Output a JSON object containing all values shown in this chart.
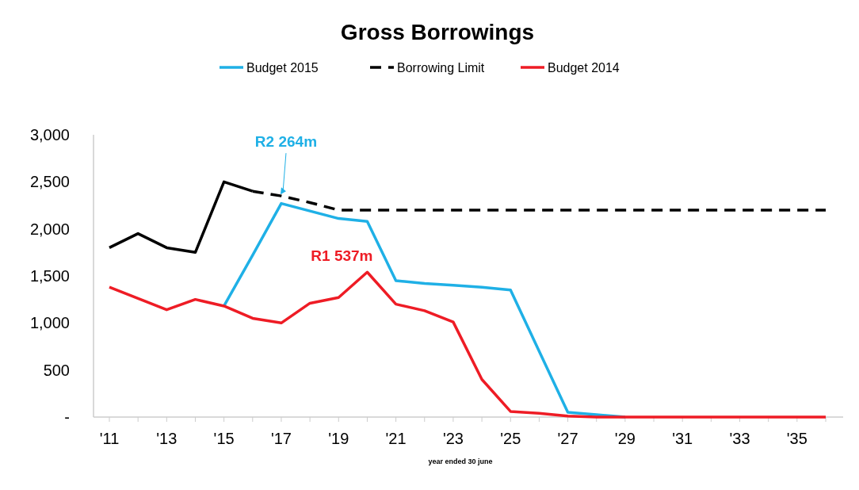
{
  "chart_data": {
    "type": "line",
    "title": "Gross Borrowings",
    "xlabel": "year ended 30 june",
    "categories": [
      "'11",
      null,
      "'13",
      null,
      "'15",
      null,
      "'17",
      null,
      "'19",
      null,
      "'21",
      null,
      "'23",
      null,
      "'25",
      null,
      "'27",
      null,
      "'29",
      null,
      "'31",
      null,
      "'33",
      null,
      "'35",
      null
    ],
    "ylim": [
      0,
      3000
    ],
    "yticks": [
      {
        "value": 0,
        "label": "-"
      },
      {
        "value": 500,
        "label": "500"
      },
      {
        "value": 1000,
        "label": "1,000"
      },
      {
        "value": 1500,
        "label": "1,500"
      },
      {
        "value": 2000,
        "label": "2,000"
      },
      {
        "value": 2500,
        "label": "2,500"
      },
      {
        "value": 3000,
        "label": "3,000"
      }
    ],
    "grid": false,
    "legend": "top",
    "series": [
      {
        "name": "Budget 2015",
        "color": "#1fb0e6",
        "line_style": "solid",
        "values": [
          null,
          null,
          null,
          null,
          1180,
          1720,
          2270,
          2190,
          2110,
          2080,
          1450,
          1420,
          1400,
          1380,
          1350,
          700,
          50,
          25,
          0,
          null,
          null,
          null,
          null,
          null,
          null,
          null
        ]
      },
      {
        "color": "#000000",
        "line_style": "solid",
        "values": [
          1800,
          1950,
          1800,
          1750,
          2500,
          2400,
          null,
          null,
          null,
          null,
          null,
          null,
          null,
          null,
          null,
          null,
          null,
          null,
          null,
          null,
          null,
          null,
          null,
          null,
          null,
          null
        ]
      },
      {
        "name": "Borrowing Limit",
        "color": "#000000",
        "line_style": "dashed",
        "values": [
          null,
          null,
          null,
          null,
          null,
          2400,
          2350,
          2280,
          2200,
          2200,
          2200,
          2200,
          2200,
          2200,
          2200,
          2200,
          2200,
          2200,
          2200,
          2200,
          2200,
          2200,
          2200,
          2200,
          2200,
          2200
        ]
      },
      {
        "name": "Budget 2014",
        "color": "#ee1c25",
        "line_style": "solid",
        "values": [
          1380,
          1260,
          1140,
          1250,
          1180,
          1050,
          1000,
          1210,
          1270,
          1540,
          1200,
          1130,
          1010,
          400,
          60,
          40,
          10,
          0,
          0,
          0,
          0,
          0,
          0,
          0,
          0,
          0
        ]
      }
    ],
    "annotations": [
      {
        "text": "R2 264m",
        "x": "'17",
        "y": 2350
      },
      "R1 537m"
    ]
  }
}
